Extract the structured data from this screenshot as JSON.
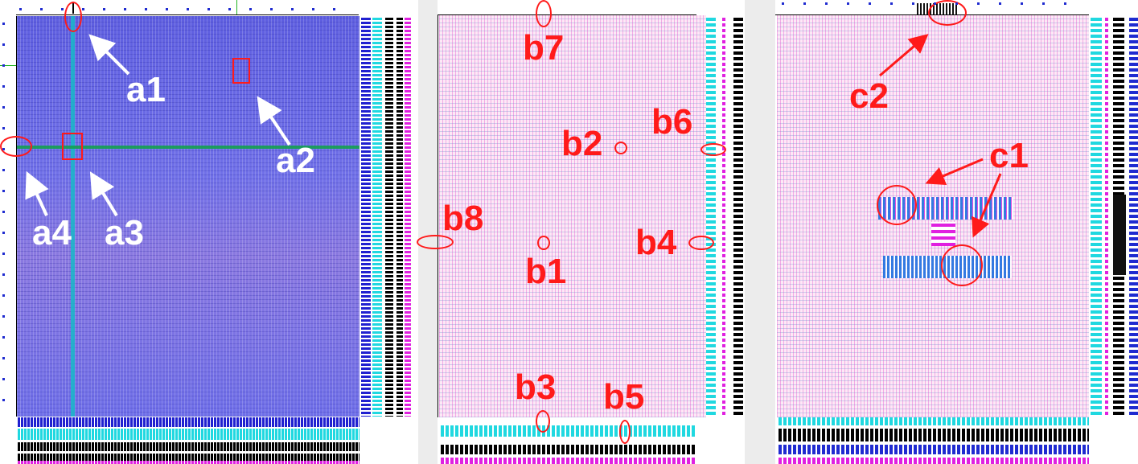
{
  "figure": {
    "panel_a": {
      "labels": {
        "a1": "a1",
        "a2": "a2",
        "a3": "a3",
        "a4": "a4"
      },
      "colors": {
        "background": "#6a6ae6",
        "label": "#ffffff",
        "highlight_line": "#18c0c0",
        "marker": "#ff1a1a"
      }
    },
    "panel_b": {
      "labels": {
        "b1": "b1",
        "b2": "b2",
        "b3": "b3",
        "b4": "b4",
        "b5": "b5",
        "b6": "b6",
        "b7": "b7",
        "b8": "b8"
      },
      "colors": {
        "background": "#fdecf6",
        "label": "#ff1a1a",
        "marker": "#ff1a1a"
      }
    },
    "panel_c": {
      "labels": {
        "c1": "c1",
        "c2": "c2"
      },
      "colors": {
        "background": "#fdecf6",
        "label": "#ff1a1a",
        "cluster": "#1f6fe0",
        "marker": "#ff1a1a"
      }
    }
  }
}
